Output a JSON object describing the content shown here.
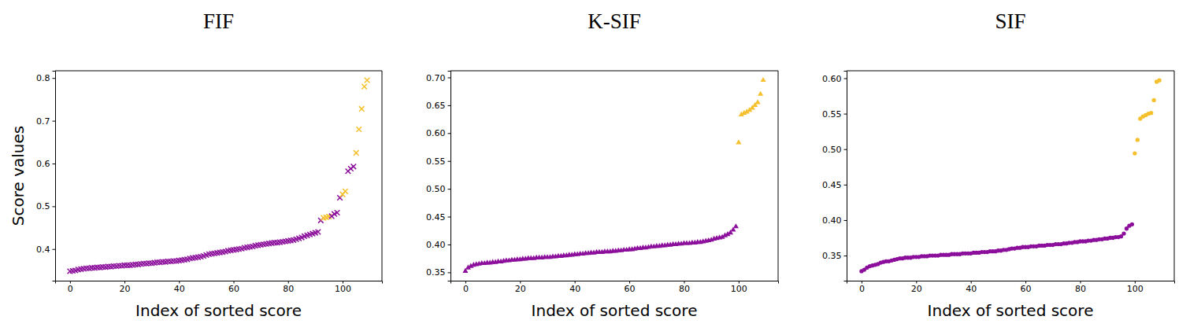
{
  "chart_data": [
    {
      "type": "scatter",
      "title": "FIF",
      "x_label": "Index of sorted score",
      "y_label": "Score values",
      "marker": "x",
      "xlim": [
        -5.45,
        114.45
      ],
      "xticks": [
        0,
        20,
        40,
        60,
        80,
        100
      ],
      "ylim": [
        0.326,
        0.817
      ],
      "yticks": [
        0.4,
        0.5,
        0.6,
        0.7,
        0.8
      ],
      "x": [
        0,
        1,
        2,
        3,
        4,
        5,
        6,
        7,
        8,
        9,
        10,
        11,
        12,
        13,
        14,
        15,
        16,
        17,
        18,
        19,
        20,
        21,
        22,
        23,
        24,
        25,
        26,
        27,
        28,
        29,
        30,
        31,
        32,
        33,
        34,
        35,
        36,
        37,
        38,
        39,
        40,
        41,
        42,
        43,
        44,
        45,
        46,
        47,
        48,
        49,
        50,
        51,
        52,
        53,
        54,
        55,
        56,
        57,
        58,
        59,
        60,
        61,
        62,
        63,
        64,
        65,
        66,
        67,
        68,
        69,
        70,
        71,
        72,
        73,
        74,
        75,
        76,
        77,
        78,
        79,
        80,
        81,
        82,
        83,
        84,
        85,
        86,
        87,
        88,
        89,
        90,
        91,
        92,
        93,
        94,
        95,
        96,
        97,
        98,
        99,
        100,
        101,
        102,
        103,
        104,
        105,
        106,
        107,
        108,
        109
      ],
      "values": [
        0.348,
        0.349,
        0.35,
        0.352,
        0.353,
        0.354,
        0.355,
        0.355,
        0.356,
        0.356,
        0.357,
        0.357,
        0.358,
        0.358,
        0.359,
        0.359,
        0.36,
        0.36,
        0.361,
        0.361,
        0.362,
        0.362,
        0.362,
        0.363,
        0.364,
        0.364,
        0.365,
        0.366,
        0.366,
        0.367,
        0.367,
        0.368,
        0.369,
        0.369,
        0.37,
        0.37,
        0.371,
        0.371,
        0.372,
        0.372,
        0.373,
        0.374,
        0.375,
        0.376,
        0.378,
        0.379,
        0.38,
        0.381,
        0.382,
        0.384,
        0.386,
        0.388,
        0.389,
        0.39,
        0.391,
        0.392,
        0.393,
        0.394,
        0.396,
        0.397,
        0.398,
        0.399,
        0.4,
        0.401,
        0.403,
        0.404,
        0.405,
        0.406,
        0.408,
        0.409,
        0.41,
        0.411,
        0.412,
        0.413,
        0.414,
        0.415,
        0.415,
        0.416,
        0.417,
        0.418,
        0.419,
        0.42,
        0.421,
        0.423,
        0.425,
        0.427,
        0.43,
        0.432,
        0.434,
        0.436,
        0.438,
        0.44,
        0.467,
        0.473,
        0.474,
        0.476,
        0.477,
        0.482,
        0.485,
        0.52,
        0.528,
        0.535,
        0.582,
        0.588,
        0.593,
        0.625,
        0.68,
        0.728,
        0.78,
        0.795
      ],
      "colors": [
        "#8c0f9c",
        "#8c0f9c",
        "#8c0f9c",
        "#8c0f9c",
        "#8c0f9c",
        "#8c0f9c",
        "#8c0f9c",
        "#8c0f9c",
        "#8c0f9c",
        "#8c0f9c",
        "#8c0f9c",
        "#8c0f9c",
        "#8c0f9c",
        "#8c0f9c",
        "#8c0f9c",
        "#8c0f9c",
        "#8c0f9c",
        "#8c0f9c",
        "#8c0f9c",
        "#8c0f9c",
        "#8c0f9c",
        "#8c0f9c",
        "#8c0f9c",
        "#8c0f9c",
        "#8c0f9c",
        "#8c0f9c",
        "#8c0f9c",
        "#8c0f9c",
        "#8c0f9c",
        "#8c0f9c",
        "#8c0f9c",
        "#8c0f9c",
        "#8c0f9c",
        "#8c0f9c",
        "#8c0f9c",
        "#8c0f9c",
        "#8c0f9c",
        "#8c0f9c",
        "#8c0f9c",
        "#8c0f9c",
        "#8c0f9c",
        "#8c0f9c",
        "#8c0f9c",
        "#8c0f9c",
        "#8c0f9c",
        "#8c0f9c",
        "#8c0f9c",
        "#8c0f9c",
        "#8c0f9c",
        "#8c0f9c",
        "#8c0f9c",
        "#8c0f9c",
        "#8c0f9c",
        "#8c0f9c",
        "#8c0f9c",
        "#8c0f9c",
        "#8c0f9c",
        "#8c0f9c",
        "#8c0f9c",
        "#8c0f9c",
        "#8c0f9c",
        "#8c0f9c",
        "#8c0f9c",
        "#8c0f9c",
        "#8c0f9c",
        "#8c0f9c",
        "#8c0f9c",
        "#8c0f9c",
        "#8c0f9c",
        "#8c0f9c",
        "#8c0f9c",
        "#8c0f9c",
        "#8c0f9c",
        "#8c0f9c",
        "#8c0f9c",
        "#8c0f9c",
        "#8c0f9c",
        "#8c0f9c",
        "#8c0f9c",
        "#8c0f9c",
        "#8c0f9c",
        "#8c0f9c",
        "#8c0f9c",
        "#8c0f9c",
        "#8c0f9c",
        "#8c0f9c",
        "#8c0f9c",
        "#8c0f9c",
        "#8c0f9c",
        "#8c0f9c",
        "#8c0f9c",
        "#8c0f9c",
        "#8c0f9c",
        "#f5c02c",
        "#f5c02c",
        "#f5c02c",
        "#8c0f9c",
        "#8c0f9c",
        "#8c0f9c",
        "#8c0f9c",
        "#f5c02c",
        "#f5c02c",
        "#8c0f9c",
        "#8c0f9c",
        "#8c0f9c",
        "#f5c02c",
        "#f5c02c",
        "#f5c02c",
        "#f5c02c",
        "#f5c02c"
      ]
    },
    {
      "type": "scatter",
      "title": "K-SIF",
      "x_label": "Index of sorted score",
      "marker": "triangle",
      "xlim": [
        -5.45,
        114.45
      ],
      "xticks": [
        0,
        20,
        40,
        60,
        80,
        100
      ],
      "ylim": [
        0.335,
        0.712
      ],
      "yticks": [
        0.35,
        {
          "value": 0.4,
          "label": "0.40"
        },
        0.45,
        {
          "value": 0.5,
          "label": "0.50"
        },
        0.55,
        {
          "value": 0.6,
          "label": "0.60"
        },
        0.65,
        {
          "value": 0.7,
          "label": "0.70"
        }
      ],
      "x": [
        0,
        1,
        2,
        3,
        4,
        5,
        6,
        7,
        8,
        9,
        10,
        11,
        12,
        13,
        14,
        15,
        16,
        17,
        18,
        19,
        20,
        21,
        22,
        23,
        24,
        25,
        26,
        27,
        28,
        29,
        30,
        31,
        32,
        33,
        34,
        35,
        36,
        37,
        38,
        39,
        40,
        41,
        42,
        43,
        44,
        45,
        46,
        47,
        48,
        49,
        50,
        51,
        52,
        53,
        54,
        55,
        56,
        57,
        58,
        59,
        60,
        61,
        62,
        63,
        64,
        65,
        66,
        67,
        68,
        69,
        70,
        71,
        72,
        73,
        74,
        75,
        76,
        77,
        78,
        79,
        80,
        81,
        82,
        83,
        84,
        85,
        86,
        87,
        88,
        89,
        90,
        91,
        92,
        93,
        94,
        95,
        96,
        97,
        98,
        99,
        100,
        101,
        102,
        103,
        104,
        105,
        106,
        107,
        108,
        109
      ],
      "values": [
        0.352,
        0.358,
        0.361,
        0.363,
        0.364,
        0.365,
        0.366,
        0.366,
        0.367,
        0.367,
        0.368,
        0.368,
        0.369,
        0.369,
        0.37,
        0.371,
        0.371,
        0.372,
        0.372,
        0.373,
        0.373,
        0.374,
        0.374,
        0.375,
        0.375,
        0.375,
        0.376,
        0.376,
        0.376,
        0.377,
        0.377,
        0.377,
        0.378,
        0.378,
        0.379,
        0.379,
        0.38,
        0.38,
        0.381,
        0.381,
        0.382,
        0.382,
        0.383,
        0.383,
        0.384,
        0.384,
        0.385,
        0.385,
        0.386,
        0.386,
        0.386,
        0.387,
        0.387,
        0.387,
        0.388,
        0.388,
        0.389,
        0.389,
        0.39,
        0.39,
        0.391,
        0.391,
        0.392,
        0.393,
        0.393,
        0.394,
        0.394,
        0.395,
        0.396,
        0.396,
        0.397,
        0.397,
        0.398,
        0.398,
        0.399,
        0.399,
        0.4,
        0.4,
        0.401,
        0.401,
        0.402,
        0.402,
        0.402,
        0.403,
        0.403,
        0.404,
        0.404,
        0.405,
        0.406,
        0.407,
        0.408,
        0.41,
        0.411,
        0.412,
        0.413,
        0.416,
        0.418,
        0.421,
        0.426,
        0.432,
        0.583,
        0.633,
        0.636,
        0.638,
        0.641,
        0.645,
        0.65,
        0.655,
        0.67,
        0.695
      ],
      "colors": [
        "#8c0f9c",
        "#8c0f9c",
        "#8c0f9c",
        "#8c0f9c",
        "#8c0f9c",
        "#8c0f9c",
        "#8c0f9c",
        "#8c0f9c",
        "#8c0f9c",
        "#8c0f9c",
        "#8c0f9c",
        "#8c0f9c",
        "#8c0f9c",
        "#8c0f9c",
        "#8c0f9c",
        "#8c0f9c",
        "#8c0f9c",
        "#8c0f9c",
        "#8c0f9c",
        "#8c0f9c",
        "#8c0f9c",
        "#8c0f9c",
        "#8c0f9c",
        "#8c0f9c",
        "#8c0f9c",
        "#8c0f9c",
        "#8c0f9c",
        "#8c0f9c",
        "#8c0f9c",
        "#8c0f9c",
        "#8c0f9c",
        "#8c0f9c",
        "#8c0f9c",
        "#8c0f9c",
        "#8c0f9c",
        "#8c0f9c",
        "#8c0f9c",
        "#8c0f9c",
        "#8c0f9c",
        "#8c0f9c",
        "#8c0f9c",
        "#8c0f9c",
        "#8c0f9c",
        "#8c0f9c",
        "#8c0f9c",
        "#8c0f9c",
        "#8c0f9c",
        "#8c0f9c",
        "#8c0f9c",
        "#8c0f9c",
        "#8c0f9c",
        "#8c0f9c",
        "#8c0f9c",
        "#8c0f9c",
        "#8c0f9c",
        "#8c0f9c",
        "#8c0f9c",
        "#8c0f9c",
        "#8c0f9c",
        "#8c0f9c",
        "#8c0f9c",
        "#8c0f9c",
        "#8c0f9c",
        "#8c0f9c",
        "#8c0f9c",
        "#8c0f9c",
        "#8c0f9c",
        "#8c0f9c",
        "#8c0f9c",
        "#8c0f9c",
        "#8c0f9c",
        "#8c0f9c",
        "#8c0f9c",
        "#8c0f9c",
        "#8c0f9c",
        "#8c0f9c",
        "#8c0f9c",
        "#8c0f9c",
        "#8c0f9c",
        "#8c0f9c",
        "#8c0f9c",
        "#8c0f9c",
        "#8c0f9c",
        "#8c0f9c",
        "#8c0f9c",
        "#8c0f9c",
        "#8c0f9c",
        "#8c0f9c",
        "#8c0f9c",
        "#8c0f9c",
        "#8c0f9c",
        "#8c0f9c",
        "#8c0f9c",
        "#8c0f9c",
        "#8c0f9c",
        "#8c0f9c",
        "#8c0f9c",
        "#8c0f9c",
        "#8c0f9c",
        "#8c0f9c",
        "#f5c02c",
        "#f5c02c",
        "#f5c02c",
        "#f5c02c",
        "#f5c02c",
        "#f5c02c",
        "#f5c02c",
        "#f5c02c",
        "#f5c02c",
        "#f5c02c"
      ]
    },
    {
      "type": "scatter",
      "title": "SIF",
      "x_label": "Index of sorted score",
      "marker": "circle",
      "xlim": [
        -5.45,
        114.45
      ],
      "xticks": [
        0,
        20,
        40,
        60,
        80,
        100
      ],
      "ylim": [
        0.3146,
        0.6105
      ],
      "yticks": [
        0.35,
        {
          "value": 0.4,
          "label": "0.40"
        },
        0.45,
        {
          "value": 0.5,
          "label": "0.50"
        },
        0.55,
        {
          "value": 0.6,
          "label": "0.60"
        }
      ],
      "x": [
        0,
        1,
        2,
        3,
        4,
        5,
        6,
        7,
        8,
        9,
        10,
        11,
        12,
        13,
        14,
        15,
        16,
        17,
        18,
        19,
        20,
        21,
        22,
        23,
        24,
        25,
        26,
        27,
        28,
        29,
        30,
        31,
        32,
        33,
        34,
        35,
        36,
        37,
        38,
        39,
        40,
        41,
        42,
        43,
        44,
        45,
        46,
        47,
        48,
        49,
        50,
        51,
        52,
        53,
        54,
        55,
        56,
        57,
        58,
        59,
        60,
        61,
        62,
        63,
        64,
        65,
        66,
        67,
        68,
        69,
        70,
        71,
        72,
        73,
        74,
        75,
        76,
        77,
        78,
        79,
        80,
        81,
        82,
        83,
        84,
        85,
        86,
        87,
        88,
        89,
        90,
        91,
        92,
        93,
        94,
        95,
        96,
        97,
        98,
        99,
        100,
        101,
        102,
        103,
        104,
        105,
        106,
        107,
        108,
        109
      ],
      "values": [
        0.328,
        0.33,
        0.333,
        0.335,
        0.336,
        0.337,
        0.338,
        0.34,
        0.341,
        0.342,
        0.342,
        0.343,
        0.344,
        0.345,
        0.346,
        0.346,
        0.347,
        0.347,
        0.347,
        0.348,
        0.348,
        0.348,
        0.349,
        0.349,
        0.349,
        0.35,
        0.35,
        0.35,
        0.35,
        0.351,
        0.351,
        0.351,
        0.351,
        0.352,
        0.352,
        0.352,
        0.352,
        0.353,
        0.353,
        0.353,
        0.353,
        0.354,
        0.354,
        0.354,
        0.355,
        0.355,
        0.355,
        0.356,
        0.356,
        0.356,
        0.357,
        0.357,
        0.358,
        0.358,
        0.359,
        0.36,
        0.36,
        0.361,
        0.361,
        0.362,
        0.362,
        0.362,
        0.363,
        0.363,
        0.363,
        0.364,
        0.364,
        0.364,
        0.365,
        0.365,
        0.365,
        0.366,
        0.366,
        0.366,
        0.367,
        0.367,
        0.368,
        0.368,
        0.369,
        0.369,
        0.37,
        0.37,
        0.37,
        0.371,
        0.371,
        0.372,
        0.372,
        0.373,
        0.373,
        0.374,
        0.374,
        0.375,
        0.375,
        0.376,
        0.376,
        0.377,
        0.381,
        0.388,
        0.392,
        0.394,
        0.494,
        0.513,
        0.543,
        0.546,
        0.548,
        0.55,
        0.551,
        0.569,
        0.595,
        0.597
      ],
      "colors": [
        "#8c0f9c",
        "#8c0f9c",
        "#8c0f9c",
        "#8c0f9c",
        "#8c0f9c",
        "#8c0f9c",
        "#8c0f9c",
        "#8c0f9c",
        "#8c0f9c",
        "#8c0f9c",
        "#8c0f9c",
        "#8c0f9c",
        "#8c0f9c",
        "#8c0f9c",
        "#8c0f9c",
        "#8c0f9c",
        "#8c0f9c",
        "#8c0f9c",
        "#8c0f9c",
        "#8c0f9c",
        "#8c0f9c",
        "#8c0f9c",
        "#8c0f9c",
        "#8c0f9c",
        "#8c0f9c",
        "#8c0f9c",
        "#8c0f9c",
        "#8c0f9c",
        "#8c0f9c",
        "#8c0f9c",
        "#8c0f9c",
        "#8c0f9c",
        "#8c0f9c",
        "#8c0f9c",
        "#8c0f9c",
        "#8c0f9c",
        "#8c0f9c",
        "#8c0f9c",
        "#8c0f9c",
        "#8c0f9c",
        "#8c0f9c",
        "#8c0f9c",
        "#8c0f9c",
        "#8c0f9c",
        "#8c0f9c",
        "#8c0f9c",
        "#8c0f9c",
        "#8c0f9c",
        "#8c0f9c",
        "#8c0f9c",
        "#8c0f9c",
        "#8c0f9c",
        "#8c0f9c",
        "#8c0f9c",
        "#8c0f9c",
        "#8c0f9c",
        "#8c0f9c",
        "#8c0f9c",
        "#8c0f9c",
        "#8c0f9c",
        "#8c0f9c",
        "#8c0f9c",
        "#8c0f9c",
        "#8c0f9c",
        "#8c0f9c",
        "#8c0f9c",
        "#8c0f9c",
        "#8c0f9c",
        "#8c0f9c",
        "#8c0f9c",
        "#8c0f9c",
        "#8c0f9c",
        "#8c0f9c",
        "#8c0f9c",
        "#8c0f9c",
        "#8c0f9c",
        "#8c0f9c",
        "#8c0f9c",
        "#8c0f9c",
        "#8c0f9c",
        "#8c0f9c",
        "#8c0f9c",
        "#8c0f9c",
        "#8c0f9c",
        "#8c0f9c",
        "#8c0f9c",
        "#8c0f9c",
        "#8c0f9c",
        "#8c0f9c",
        "#8c0f9c",
        "#8c0f9c",
        "#8c0f9c",
        "#8c0f9c",
        "#8c0f9c",
        "#8c0f9c",
        "#8c0f9c",
        "#8c0f9c",
        "#8c0f9c",
        "#8c0f9c",
        "#8c0f9c",
        "#f5c02c",
        "#f5c02c",
        "#f5c02c",
        "#f5c02c",
        "#f5c02c",
        "#f5c02c",
        "#f5c02c",
        "#f5c02c",
        "#f5c02c",
        "#f5c02c"
      ]
    }
  ]
}
